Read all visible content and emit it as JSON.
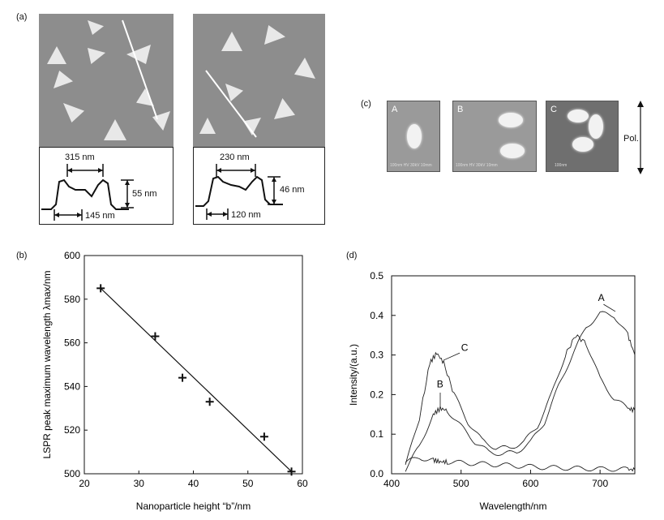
{
  "panel_a": {
    "label": "(a)",
    "left_profile": {
      "width_label": "315 nm",
      "height_label": "55 nm",
      "base_label": "145 nm"
    },
    "right_profile": {
      "width_label": "230 nm",
      "height_label": "46 nm",
      "base_label": "120 nm"
    }
  },
  "panel_b": {
    "label": "(b)",
    "chart_data": {
      "type": "scatter",
      "xlabel": "Nanoparticle height “b”/nm",
      "ylabel": "LSPR peak maximum wavelength λmax/nm",
      "xlim": [
        20,
        60
      ],
      "ylim": [
        500,
        600
      ],
      "x_ticks": [
        "20",
        "30",
        "40",
        "50",
        "60"
      ],
      "y_ticks": [
        "500",
        "520",
        "540",
        "560",
        "580",
        "600"
      ],
      "marker": "+",
      "points": [
        {
          "x": 23,
          "y": 585
        },
        {
          "x": 33,
          "y": 563
        },
        {
          "x": 38,
          "y": 544
        },
        {
          "x": 43,
          "y": 533
        },
        {
          "x": 53,
          "y": 517
        },
        {
          "x": 58,
          "y": 501
        }
      ],
      "fit_line": [
        [
          23,
          585
        ],
        [
          58,
          501
        ]
      ]
    }
  },
  "panel_c": {
    "label": "(c)",
    "images": [
      {
        "tag": "A",
        "caption": "100nm  HV 30kV  10mm"
      },
      {
        "tag": "B",
        "caption": "100nm  HV 30kV  10mm"
      },
      {
        "tag": "C",
        "caption": "100nm"
      }
    ],
    "polarization_label": "Pol."
  },
  "panel_d": {
    "label": "(d)",
    "chart_data": {
      "type": "line",
      "xlabel": "Wavelength/nm",
      "ylabel": "Intensity/(a.u.)",
      "xlim": [
        400,
        750
      ],
      "ylim": [
        0,
        0.5
      ],
      "x_ticks": [
        "400",
        "500",
        "600",
        "700"
      ],
      "y_ticks": [
        "0.0",
        "0.1",
        "0.2",
        "0.3",
        "0.4",
        "0.5"
      ],
      "series": [
        {
          "name": "A",
          "x": [
            420,
            440,
            460,
            470,
            480,
            500,
            520,
            540,
            560,
            580,
            600,
            620,
            640,
            660,
            680,
            700,
            720,
            740,
            750
          ],
          "y": [
            0.01,
            0.07,
            0.15,
            0.165,
            0.16,
            0.12,
            0.08,
            0.055,
            0.05,
            0.055,
            0.08,
            0.13,
            0.22,
            0.3,
            0.37,
            0.405,
            0.4,
            0.35,
            0.3
          ]
        },
        {
          "name": "B",
          "x": [
            420,
            440,
            460,
            470,
            480,
            500,
            520,
            540,
            560,
            580,
            600,
            620,
            640,
            660,
            680,
            700,
            720,
            740,
            750
          ],
          "y": [
            0.03,
            0.04,
            0.035,
            0.03,
            0.03,
            0.028,
            0.026,
            0.024,
            0.022,
            0.02,
            0.018,
            0.016,
            0.015,
            0.014,
            0.013,
            0.012,
            0.012,
            0.011,
            0.01
          ]
        },
        {
          "name": "C",
          "x": [
            420,
            440,
            455,
            465,
            475,
            490,
            510,
            530,
            550,
            570,
            590,
            610,
            630,
            650,
            665,
            680,
            700,
            720,
            740,
            750
          ],
          "y": [
            0.02,
            0.14,
            0.28,
            0.305,
            0.28,
            0.2,
            0.13,
            0.085,
            0.065,
            0.065,
            0.08,
            0.12,
            0.2,
            0.3,
            0.35,
            0.33,
            0.24,
            0.19,
            0.165,
            0.16
          ]
        }
      ],
      "annotations": [
        "A",
        "B",
        "C"
      ]
    }
  }
}
